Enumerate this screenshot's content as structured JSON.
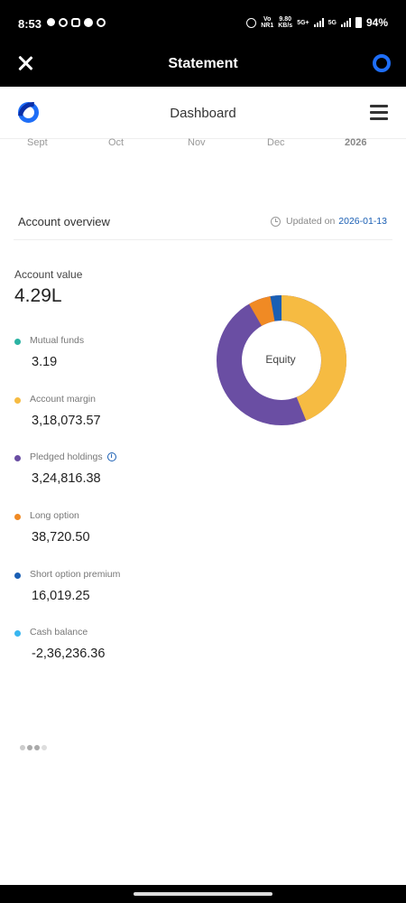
{
  "status_bar": {
    "time": "8:53",
    "net_left_top": "Vo",
    "net_left_bottom": "NR1",
    "speed_top": "9.80",
    "speed_bottom": "KB/s",
    "sim1": "5G+",
    "sim2": "5G",
    "battery": "94%"
  },
  "titlebar": {
    "title": "Statement"
  },
  "app_header": {
    "title": "Dashboard"
  },
  "months": [
    "Sept",
    "Oct",
    "Nov",
    "Dec",
    "2026"
  ],
  "overview": {
    "title": "Account overview",
    "updated_prefix": "Updated on",
    "updated_date": "2026-01-13",
    "account_value_label": "Account value",
    "account_value": "4.29L"
  },
  "breakdown": [
    {
      "label": "Mutual funds",
      "value": "3.19",
      "color": "#2bb3a3"
    },
    {
      "label": "Account margin",
      "value": "3,18,073.57",
      "color": "#f6bb42"
    },
    {
      "label": "Pledged holdings",
      "value": "3,24,816.38",
      "color": "#6a4ea3"
    },
    {
      "label": "Long option",
      "value": "38,720.50",
      "color": "#f08a24"
    },
    {
      "label": "Short option premium",
      "value": "16,019.25",
      "color": "#1a5fb4"
    },
    {
      "label": "Cash balance",
      "value": "-2,36,236.36",
      "color": "#39b6f0"
    }
  ],
  "donut": {
    "center_label": "Equity",
    "colors": {
      "margin": "#f6bb42",
      "pledged": "#6a4ea3",
      "long_option": "#f08a24",
      "short_option": "#1a5fb4"
    }
  }
}
